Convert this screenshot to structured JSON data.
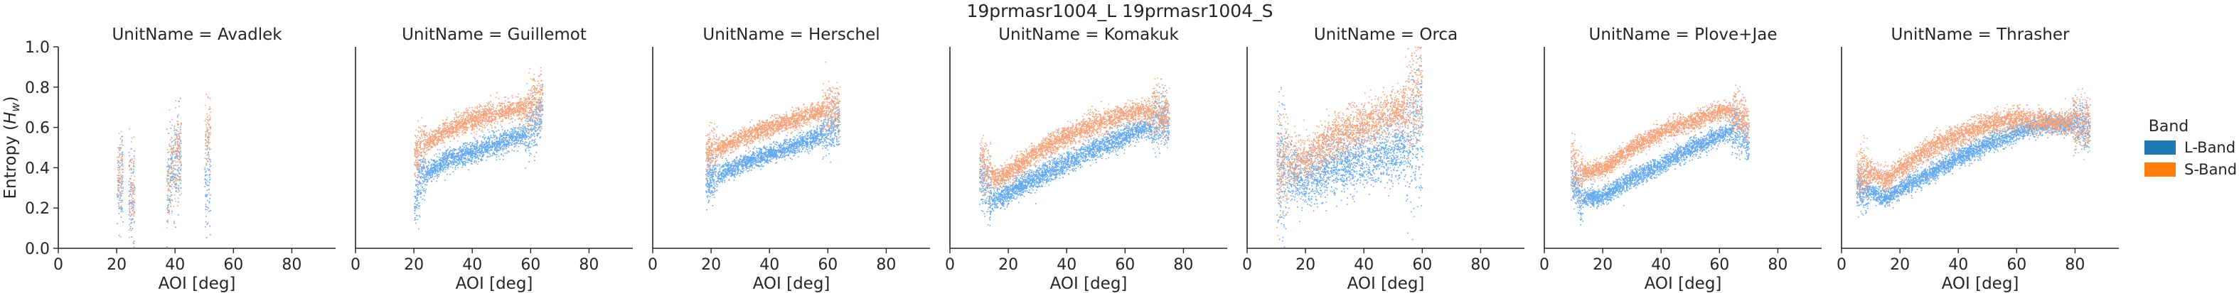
{
  "chart_data": {
    "type": "scatter",
    "title": "19prmasr1004_L 19prmasr1004_S",
    "xlabel": "AOI [deg]",
    "ylabel": "Entropy (H_w)",
    "xlim": [
      0,
      95
    ],
    "ylim": [
      0,
      1.0
    ],
    "xticks": [
      "0",
      "20",
      "40",
      "60",
      "80"
    ],
    "yticks": [
      "0.0",
      "0.2",
      "0.4",
      "0.6",
      "0.8",
      "1.0"
    ],
    "grid": false,
    "legend": {
      "title": "Band",
      "placement": "right",
      "entries": [
        {
          "name": "L-Band",
          "color": "#1f77b4",
          "point_color": "#63a8f0"
        },
        {
          "name": "S-Band",
          "color": "#ff7f0e",
          "point_color": "#f5a27a"
        }
      ]
    },
    "panels": [
      {
        "title": "UnitName = Avadlek",
        "series": [
          {
            "name": "L-Band",
            "segments": [
              [
                [
                  20,
                  0.3
                ],
                [
                  22,
                  0.38
                ]
              ],
              [
                [
                  24,
                  0.25
                ],
                [
                  26,
                  0.28
                ]
              ],
              [
                [
                  37,
                  0.3
                ],
                [
                  40,
                  0.42
                ],
                [
                  42,
                  0.44
                ]
              ],
              [
                [
                  50,
                  0.3
                ],
                [
                  52,
                  0.35
                ]
              ]
            ],
            "spread": 0.1
          },
          {
            "name": "S-Band",
            "segments": [
              [
                [
                  20,
                  0.32
                ],
                [
                  22,
                  0.4
                ]
              ],
              [
                [
                  24,
                  0.26
                ],
                [
                  26,
                  0.3
                ]
              ],
              [
                [
                  37,
                  0.3
                ],
                [
                  40,
                  0.46
                ],
                [
                  42,
                  0.5
                ]
              ],
              [
                [
                  50,
                  0.55
                ],
                [
                  52,
                  0.6
                ]
              ]
            ],
            "spread": 0.1
          }
        ]
      },
      {
        "title": "UnitName = Guillemot",
        "series": [
          {
            "name": "L-Band",
            "segments": [
              [
                [
                  20,
                  0.22
                ],
                [
                  22,
                  0.35
                ],
                [
                  30,
                  0.43
                ],
                [
                  40,
                  0.48
                ],
                [
                  50,
                  0.53
                ],
                [
                  60,
                  0.58
                ],
                [
                  64,
                  0.68
                ]
              ]
            ],
            "spread": 0.06
          },
          {
            "name": "S-Band",
            "segments": [
              [
                [
                  20,
                  0.45
                ],
                [
                  22,
                  0.5
                ],
                [
                  30,
                  0.58
                ],
                [
                  40,
                  0.64
                ],
                [
                  50,
                  0.68
                ],
                [
                  58,
                  0.7
                ],
                [
                  64,
                  0.76
                ]
              ]
            ],
            "spread": 0.06
          }
        ]
      },
      {
        "title": "UnitName = Herschel",
        "series": [
          {
            "name": "L-Band",
            "segments": [
              [
                [
                  18,
                  0.33
                ],
                [
                  20,
                  0.35
                ],
                [
                  30,
                  0.42
                ],
                [
                  40,
                  0.47
                ],
                [
                  50,
                  0.52
                ],
                [
                  60,
                  0.58
                ],
                [
                  64,
                  0.62
                ]
              ]
            ],
            "spread": 0.05
          },
          {
            "name": "S-Band",
            "segments": [
              [
                [
                  18,
                  0.47
                ],
                [
                  20,
                  0.48
                ],
                [
                  30,
                  0.55
                ],
                [
                  40,
                  0.6
                ],
                [
                  50,
                  0.65
                ],
                [
                  60,
                  0.7
                ],
                [
                  64,
                  0.7
                ]
              ]
            ],
            "spread": 0.05
          }
        ]
      },
      {
        "title": "UnitName = Komakuk",
        "series": [
          {
            "name": "L-Band",
            "segments": [
              [
                [
                  10,
                  0.35
                ],
                [
                  15,
                  0.24
                ],
                [
                  20,
                  0.28
                ],
                [
                  30,
                  0.36
                ],
                [
                  40,
                  0.43
                ],
                [
                  50,
                  0.5
                ],
                [
                  60,
                  0.56
                ],
                [
                  65,
                  0.59
                ],
                [
                  70,
                  0.62
                ],
                [
                  75,
                  0.64
                ]
              ]
            ],
            "spread": 0.06
          },
          {
            "name": "S-Band",
            "segments": [
              [
                [
                  10,
                  0.45
                ],
                [
                  15,
                  0.35
                ],
                [
                  20,
                  0.38
                ],
                [
                  30,
                  0.48
                ],
                [
                  40,
                  0.56
                ],
                [
                  50,
                  0.62
                ],
                [
                  60,
                  0.67
                ],
                [
                  65,
                  0.68
                ],
                [
                  70,
                  0.68
                ],
                [
                  75,
                  0.66
                ]
              ]
            ],
            "spread": 0.06
          }
        ]
      },
      {
        "title": "UnitName = Orca",
        "series": [
          {
            "name": "L-Band",
            "segments": [
              [
                [
                  10,
                  0.4
                ],
                [
                  20,
                  0.35
                ],
                [
                  30,
                  0.4
                ],
                [
                  40,
                  0.45
                ],
                [
                  50,
                  0.48
                ],
                [
                  55,
                  0.52
                ],
                [
                  60,
                  0.62
                ]
              ]
            ],
            "spread": 0.16
          },
          {
            "name": "S-Band",
            "segments": [
              [
                [
                  10,
                  0.4
                ],
                [
                  20,
                  0.45
                ],
                [
                  30,
                  0.55
                ],
                [
                  40,
                  0.62
                ],
                [
                  50,
                  0.68
                ],
                [
                  55,
                  0.72
                ],
                [
                  60,
                  0.78
                ]
              ]
            ],
            "spread": 0.12
          }
        ]
      },
      {
        "title": "UnitName = Plove+Jae",
        "series": [
          {
            "name": "L-Band",
            "segments": [
              [
                [
                  9,
                  0.35
                ],
                [
                  12,
                  0.25
                ],
                [
                  20,
                  0.26
                ],
                [
                  30,
                  0.35
                ],
                [
                  40,
                  0.42
                ],
                [
                  50,
                  0.5
                ],
                [
                  60,
                  0.56
                ],
                [
                  65,
                  0.6
                ],
                [
                  70,
                  0.52
                ]
              ]
            ],
            "spread": 0.05
          },
          {
            "name": "S-Band",
            "segments": [
              [
                [
                  9,
                  0.45
                ],
                [
                  12,
                  0.38
                ],
                [
                  20,
                  0.4
                ],
                [
                  30,
                  0.5
                ],
                [
                  40,
                  0.58
                ],
                [
                  50,
                  0.63
                ],
                [
                  60,
                  0.68
                ],
                [
                  65,
                  0.68
                ],
                [
                  70,
                  0.62
                ]
              ]
            ],
            "spread": 0.05
          }
        ]
      },
      {
        "title": "UnitName = Thrasher",
        "series": [
          {
            "name": "L-Band",
            "segments": [
              [
                [
                  5,
                  0.3
                ],
                [
                  10,
                  0.28
                ],
                [
                  15,
                  0.25
                ],
                [
                  20,
                  0.3
                ],
                [
                  30,
                  0.37
                ],
                [
                  40,
                  0.45
                ],
                [
                  50,
                  0.52
                ],
                [
                  60,
                  0.58
                ],
                [
                  70,
                  0.62
                ],
                [
                  80,
                  0.62
                ],
                [
                  85,
                  0.6
                ]
              ]
            ],
            "spread": 0.05
          },
          {
            "name": "S-Band",
            "segments": [
              [
                [
                  5,
                  0.36
                ],
                [
                  10,
                  0.38
                ],
                [
                  15,
                  0.34
                ],
                [
                  20,
                  0.4
                ],
                [
                  30,
                  0.5
                ],
                [
                  40,
                  0.56
                ],
                [
                  50,
                  0.62
                ],
                [
                  60,
                  0.65
                ],
                [
                  70,
                  0.63
                ],
                [
                  80,
                  0.63
                ],
                [
                  85,
                  0.62
                ]
              ]
            ],
            "spread": 0.06
          }
        ]
      }
    ]
  }
}
